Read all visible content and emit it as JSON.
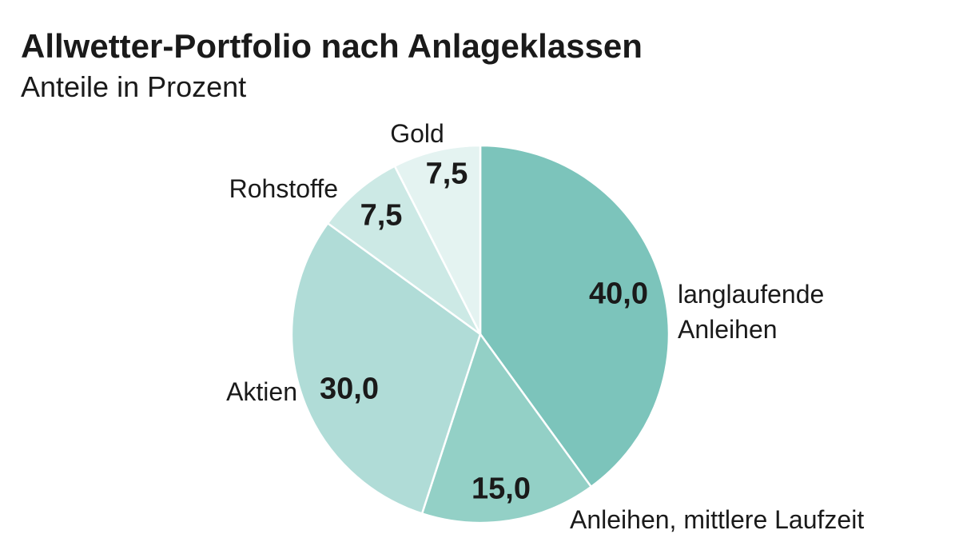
{
  "chart_data": {
    "type": "pie",
    "title": "Allwetter-Portfolio nach Anlageklassen",
    "subtitle": "Anteile in Prozent",
    "categories": [
      "langlaufende Anleihen",
      "Anleihen, mittlere Laufzeit",
      "Aktien",
      "Rohstoffe",
      "Gold"
    ],
    "values": [
      40,
      15,
      30,
      7.5,
      7.5
    ],
    "value_labels": [
      "40,0",
      "15,0",
      "30,0",
      "7,5",
      "7,5"
    ],
    "colors": [
      "#7cc4bb",
      "#93d0c6",
      "#b0dcd7",
      "#cce9e5",
      "#e4f3f1"
    ]
  }
}
